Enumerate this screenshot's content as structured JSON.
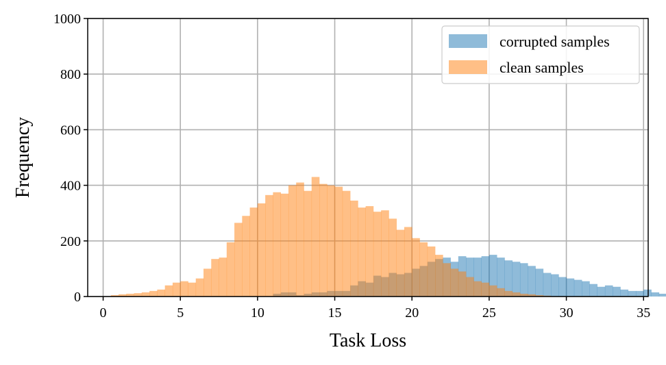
{
  "chart_data": {
    "type": "bar",
    "title": "",
    "xlabel": "Task Loss",
    "ylabel": "Frequency",
    "xlim": [
      -1,
      35.3
    ],
    "ylim": [
      0,
      1000
    ],
    "xticks": [
      0,
      5,
      10,
      15,
      20,
      25,
      30,
      35
    ],
    "yticks": [
      0,
      200,
      400,
      600,
      800,
      1000
    ],
    "grid": true,
    "legend_position": "top-right",
    "bin_start": 0.5,
    "bin_width": 0.5,
    "series": [
      {
        "name": "corrupted samples",
        "color": "#1f77b4",
        "opacity": 0.5,
        "values": [
          0,
          0,
          0,
          0,
          0,
          0,
          0,
          0,
          0,
          0,
          0,
          0,
          0,
          0,
          0,
          0,
          0,
          0,
          0,
          0,
          0,
          10,
          15,
          15,
          5,
          10,
          15,
          15,
          20,
          20,
          20,
          40,
          55,
          50,
          75,
          70,
          85,
          80,
          85,
          100,
          110,
          125,
          135,
          140,
          125,
          145,
          140,
          140,
          145,
          150,
          140,
          130,
          125,
          120,
          110,
          100,
          85,
          80,
          70,
          65,
          60,
          55,
          45,
          35,
          40,
          35,
          25,
          20,
          20,
          25,
          15,
          10,
          8,
          5
        ]
      },
      {
        "name": "clean samples",
        "color": "#ff7f0e",
        "opacity": 0.5,
        "values": [
          5,
          8,
          10,
          12,
          15,
          20,
          25,
          40,
          50,
          55,
          50,
          65,
          100,
          135,
          140,
          195,
          265,
          290,
          320,
          335,
          365,
          375,
          370,
          400,
          410,
          380,
          430,
          405,
          400,
          395,
          380,
          345,
          320,
          325,
          305,
          310,
          280,
          240,
          250,
          210,
          195,
          180,
          150,
          120,
          100,
          90,
          70,
          55,
          50,
          40,
          30,
          20,
          15,
          10,
          8,
          5,
          3,
          0,
          0,
          0,
          0,
          0,
          0,
          0,
          0,
          0,
          0,
          0,
          0,
          0,
          0,
          0,
          0,
          0
        ]
      }
    ]
  }
}
